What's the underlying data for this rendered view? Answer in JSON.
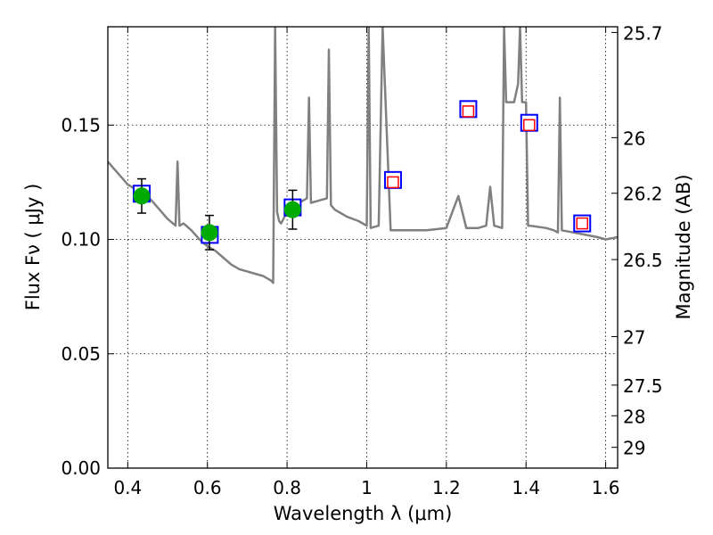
{
  "chart_data": {
    "type": "scatter",
    "xlabel": "Wavelength  λ (μm)",
    "ylabel": "Flux  Fν ( μJy )",
    "y2label": "Magnitude (AB)",
    "xlim": [
      0.35,
      1.63
    ],
    "ylim": [
      0.0,
      0.193
    ],
    "grid": true,
    "x_ticks": [
      0.4,
      0.6,
      0.8,
      1.0,
      1.2,
      1.4,
      1.6
    ],
    "x_tick_labels": [
      "0.4",
      "0.6",
      "0.8",
      "1",
      "1.2",
      "1.4",
      "1.6"
    ],
    "y_ticks": [
      0.0,
      0.05,
      0.1,
      0.15
    ],
    "y_tick_labels": [
      "0.00",
      "0.05",
      "0.10",
      "0.15"
    ],
    "mag_ticks": [
      {
        "label": "25.7",
        "flux": 0.1905
      },
      {
        "label": "26",
        "flux": 0.1445
      },
      {
        "label": "26.2",
        "flux": 0.1202
      },
      {
        "label": "26.5",
        "flux": 0.0912
      },
      {
        "label": "27",
        "flux": 0.0575
      },
      {
        "label": "27.5",
        "flux": 0.0363
      },
      {
        "label": "28",
        "flux": 0.0229
      },
      {
        "label": "29",
        "flux": 0.0091
      }
    ],
    "series": [
      {
        "role": "model_sed",
        "color": "#808080",
        "x": [
          0.35,
          0.36,
          0.37,
          0.38,
          0.39,
          0.4,
          0.42,
          0.44,
          0.46,
          0.48,
          0.5,
          0.52,
          0.525,
          0.53,
          0.54,
          0.56,
          0.58,
          0.6,
          0.62,
          0.64,
          0.66,
          0.68,
          0.7,
          0.72,
          0.74,
          0.76,
          0.765,
          0.77,
          0.775,
          0.78,
          0.785,
          0.8,
          0.82,
          0.84,
          0.85,
          0.855,
          0.86,
          0.88,
          0.9,
          0.905,
          0.91,
          0.92,
          0.95,
          0.98,
          1.0,
          1.005,
          1.01,
          1.03,
          1.04,
          1.06,
          1.1,
          1.15,
          1.2,
          1.23,
          1.25,
          1.28,
          1.3,
          1.31,
          1.32,
          1.34,
          1.345,
          1.35,
          1.37,
          1.38,
          1.385,
          1.39,
          1.4,
          1.405,
          1.41,
          1.45,
          1.47,
          1.48,
          1.485,
          1.49,
          1.52,
          1.55,
          1.58,
          1.6,
          1.63
        ],
        "y": [
          0.134,
          0.132,
          0.13,
          0.128,
          0.126,
          0.124,
          0.122,
          0.12,
          0.117,
          0.113,
          0.109,
          0.106,
          0.134,
          0.106,
          0.107,
          0.104,
          0.1,
          0.097,
          0.095,
          0.092,
          0.089,
          0.087,
          0.086,
          0.085,
          0.084,
          0.082,
          0.081,
          0.193,
          0.112,
          0.108,
          0.107,
          0.112,
          0.115,
          0.117,
          0.118,
          0.162,
          0.116,
          0.117,
          0.118,
          0.183,
          0.115,
          0.113,
          0.11,
          0.108,
          0.106,
          0.193,
          0.105,
          0.106,
          0.193,
          0.104,
          0.104,
          0.104,
          0.105,
          0.119,
          0.105,
          0.105,
          0.106,
          0.123,
          0.106,
          0.105,
          0.193,
          0.16,
          0.16,
          0.168,
          0.193,
          0.16,
          0.16,
          0.106,
          0.106,
          0.105,
          0.104,
          0.103,
          0.162,
          0.104,
          0.103,
          0.102,
          0.101,
          0.1,
          0.101
        ]
      },
      {
        "role": "observed_photometry",
        "color": "#00aa00",
        "x": [
          0.435,
          0.605,
          0.814
        ],
        "y": [
          0.119,
          0.103,
          0.113
        ],
        "yerr": [
          0.0075,
          0.0075,
          0.0085
        ]
      },
      {
        "role": "model_photometry",
        "color": "#0000ff",
        "x": [
          0.435,
          0.606,
          0.814,
          1.066,
          1.255,
          1.408,
          1.541
        ],
        "y": [
          0.12,
          0.102,
          0.114,
          0.126,
          0.157,
          0.151,
          0.107
        ]
      },
      {
        "role": "model_photometry_nir",
        "color": "#ff0000",
        "x": [
          1.066,
          1.255,
          1.408,
          1.541
        ],
        "y": [
          0.125,
          0.156,
          0.15,
          0.107
        ]
      }
    ]
  }
}
